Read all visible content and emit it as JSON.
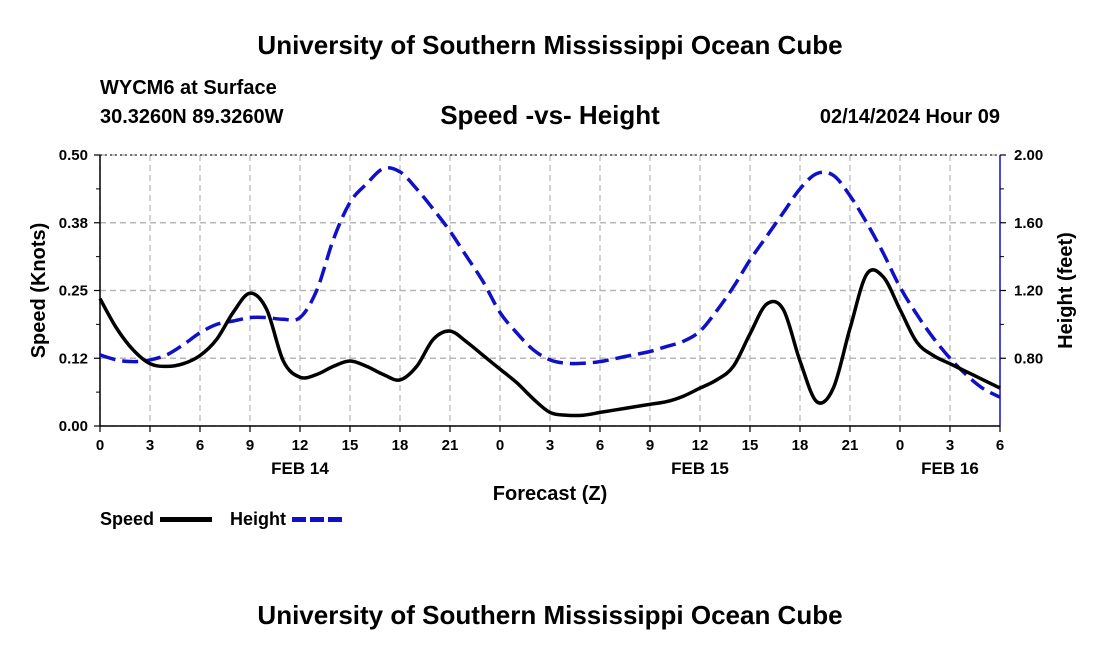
{
  "header": {
    "title": "University of Southern Mississippi Ocean Cube",
    "station": "WYCM6 at Surface",
    "location": "30.3260N  89.3260W",
    "datetime": "02/14/2024 Hour 09"
  },
  "footer": {
    "title": "University of Southern Mississippi Ocean Cube"
  },
  "colors": {
    "speed": "#000000",
    "height": "#1010c8",
    "grid": "#b4b4b4"
  },
  "chart_data": {
    "type": "line",
    "title": "Speed -vs- Height",
    "xlabel": "Forecast (Z)",
    "ylabel_left": "Speed (Knots)",
    "ylabel_right": "Height (feet)",
    "x_range": [
      0,
      54
    ],
    "x_ticks": [
      0,
      3,
      6,
      9,
      12,
      15,
      18,
      21,
      24,
      27,
      30,
      33,
      36,
      39,
      42,
      45,
      48,
      51,
      54
    ],
    "x_tick_labels": [
      "0",
      "3",
      "6",
      "9",
      "12",
      "15",
      "18",
      "21",
      "0",
      "3",
      "6",
      "9",
      "12",
      "15",
      "18",
      "21",
      "0",
      "3",
      "6"
    ],
    "day_labels": [
      {
        "x": 12,
        "label": "FEB 14"
      },
      {
        "x": 36,
        "label": "FEB 15"
      },
      {
        "x": 51,
        "label": "FEB 16"
      }
    ],
    "y_left": {
      "range": [
        0,
        0.5
      ],
      "ticks": [
        0,
        0.125,
        0.25,
        0.375,
        0.5
      ],
      "tick_labels": [
        "0.00",
        "0.12",
        "0.25",
        "0.38",
        "0.50"
      ]
    },
    "y_right": {
      "range": [
        0.4,
        2.0
      ],
      "ticks": [
        0.8,
        1.2,
        1.6,
        2.0
      ],
      "tick_labels": [
        "0.80",
        "1.20",
        "1.60",
        "2.00"
      ]
    },
    "legend": {
      "position": "bottom-left",
      "items": [
        "Speed",
        "Height"
      ]
    },
    "series": [
      {
        "name": "Speed",
        "axis": "left",
        "style": "solid",
        "x": [
          0,
          1,
          2,
          3,
          4,
          5,
          6,
          7,
          8,
          9,
          10,
          11,
          12,
          13,
          14,
          15,
          16,
          17,
          18,
          19,
          20,
          21,
          22,
          23,
          24,
          25,
          26,
          27,
          28,
          29,
          30,
          31,
          32,
          33,
          34,
          35,
          36,
          37,
          38,
          39,
          40,
          41,
          42,
          43,
          44,
          45,
          46,
          47,
          48,
          49,
          50,
          51,
          52,
          53,
          54
        ],
        "values": [
          0.235,
          0.18,
          0.14,
          0.115,
          0.11,
          0.115,
          0.13,
          0.16,
          0.21,
          0.245,
          0.215,
          0.12,
          0.09,
          0.095,
          0.11,
          0.12,
          0.11,
          0.095,
          0.085,
          0.11,
          0.16,
          0.175,
          0.155,
          0.13,
          0.105,
          0.08,
          0.05,
          0.025,
          0.02,
          0.02,
          0.025,
          0.03,
          0.035,
          0.04,
          0.045,
          0.055,
          0.07,
          0.085,
          0.11,
          0.17,
          0.225,
          0.215,
          0.12,
          0.045,
          0.07,
          0.18,
          0.28,
          0.275,
          0.215,
          0.155,
          0.13,
          0.115,
          0.1,
          0.085,
          0.07
        ]
      },
      {
        "name": "Height",
        "axis": "right",
        "style": "dashed",
        "x": [
          0,
          1,
          2,
          3,
          4,
          5,
          6,
          7,
          8,
          9,
          10,
          11,
          12,
          13,
          14,
          15,
          16,
          17,
          18,
          19,
          20,
          21,
          22,
          23,
          24,
          25,
          26,
          27,
          28,
          29,
          30,
          31,
          32,
          33,
          34,
          35,
          36,
          37,
          38,
          39,
          40,
          41,
          42,
          43,
          44,
          45,
          46,
          47,
          48,
          49,
          50,
          51,
          52,
          53,
          54
        ],
        "values": [
          0.82,
          0.79,
          0.78,
          0.79,
          0.82,
          0.88,
          0.95,
          1.0,
          1.02,
          1.04,
          1.04,
          1.03,
          1.04,
          1.2,
          1.5,
          1.72,
          1.83,
          1.92,
          1.9,
          1.8,
          1.68,
          1.55,
          1.4,
          1.25,
          1.07,
          0.95,
          0.85,
          0.79,
          0.77,
          0.77,
          0.78,
          0.8,
          0.82,
          0.84,
          0.87,
          0.9,
          0.96,
          1.08,
          1.22,
          1.38,
          1.52,
          1.66,
          1.8,
          1.89,
          1.88,
          1.76,
          1.6,
          1.42,
          1.22,
          1.06,
          0.92,
          0.8,
          0.7,
          0.62,
          0.57
        ]
      }
    ]
  }
}
